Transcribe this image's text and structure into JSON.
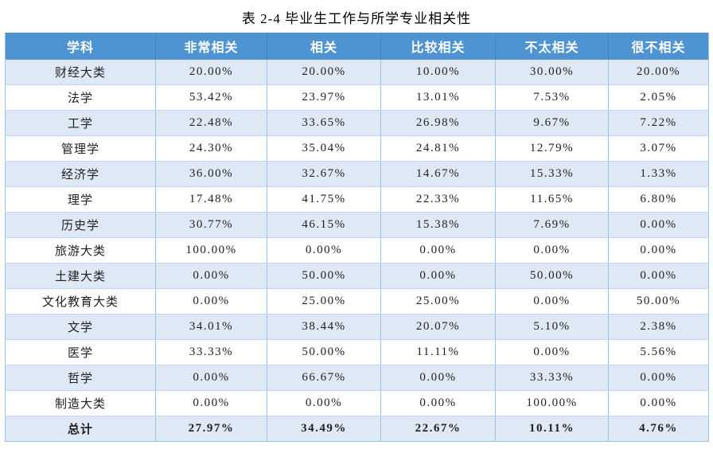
{
  "title": "表 2-4 毕业生工作与所学专业相关性",
  "colors": {
    "header_bg": "#4e94d2",
    "header_text": "#ffffff",
    "band_bg": "#dee9f5",
    "border_outer": "#9cc3e6",
    "border_row": "#bdd7ee"
  },
  "chart_data": {
    "type": "table",
    "title": "表 2-4 毕业生工作与所学专业相关性",
    "columns": [
      "学科",
      "非常相关",
      "相关",
      "比较相关",
      "不太相关",
      "很不相关"
    ],
    "rows": [
      {
        "subject": "财经大类",
        "values": [
          "20.00%",
          "20.00%",
          "10.00%",
          "30.00%",
          "20.00%"
        ]
      },
      {
        "subject": "法学",
        "values": [
          "53.42%",
          "23.97%",
          "13.01%",
          "7.53%",
          "2.05%"
        ]
      },
      {
        "subject": "工学",
        "values": [
          "22.48%",
          "33.65%",
          "26.98%",
          "9.67%",
          "7.22%"
        ]
      },
      {
        "subject": "管理学",
        "values": [
          "24.30%",
          "35.04%",
          "24.81%",
          "12.79%",
          "3.07%"
        ]
      },
      {
        "subject": "经济学",
        "values": [
          "36.00%",
          "32.67%",
          "14.67%",
          "15.33%",
          "1.33%"
        ]
      },
      {
        "subject": "理学",
        "values": [
          "17.48%",
          "41.75%",
          "22.33%",
          "11.65%",
          "6.80%"
        ]
      },
      {
        "subject": "历史学",
        "values": [
          "30.77%",
          "46.15%",
          "15.38%",
          "7.69%",
          "0.00%"
        ]
      },
      {
        "subject": "旅游大类",
        "values": [
          "100.00%",
          "0.00%",
          "0.00%",
          "0.00%",
          "0.00%"
        ]
      },
      {
        "subject": "土建大类",
        "values": [
          "0.00%",
          "50.00%",
          "0.00%",
          "50.00%",
          "0.00%"
        ]
      },
      {
        "subject": "文化教育大类",
        "values": [
          "0.00%",
          "25.00%",
          "25.00%",
          "0.00%",
          "50.00%"
        ]
      },
      {
        "subject": "文学",
        "values": [
          "34.01%",
          "38.44%",
          "20.07%",
          "5.10%",
          "2.38%"
        ]
      },
      {
        "subject": "医学",
        "values": [
          "33.33%",
          "50.00%",
          "11.11%",
          "0.00%",
          "5.56%"
        ]
      },
      {
        "subject": "哲学",
        "values": [
          "0.00%",
          "66.67%",
          "0.00%",
          "33.33%",
          "0.00%"
        ]
      },
      {
        "subject": "制造大类",
        "values": [
          "0.00%",
          "0.00%",
          "0.00%",
          "100.00%",
          "0.00%"
        ]
      }
    ],
    "total": {
      "subject": "总计",
      "values": [
        "27.97%",
        "34.49%",
        "22.67%",
        "10.11%",
        "4.76%"
      ]
    }
  }
}
